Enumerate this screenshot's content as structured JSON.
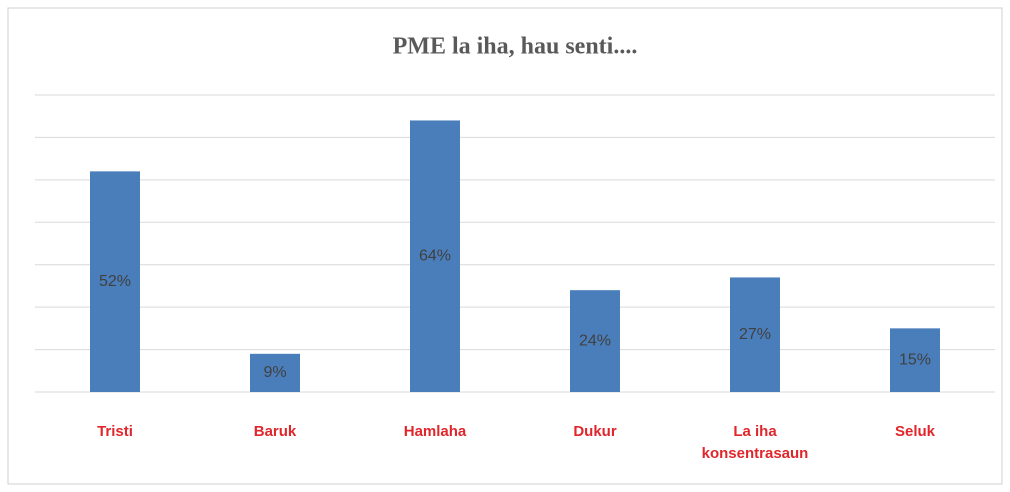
{
  "chart_data": {
    "type": "bar",
    "title": "PME la iha, hau senti....",
    "categories": [
      "Tristi",
      "Baruk",
      "Hamlaha",
      "Dukur",
      "La iha konsentrasaun",
      "Seluk"
    ],
    "values": [
      52,
      9,
      64,
      24,
      27,
      15
    ],
    "value_labels": [
      "52%",
      "9%",
      "64%",
      "24%",
      "27%",
      "15%"
    ],
    "color": "#4a7ebb",
    "category_color": "#e0262b",
    "ylim": [
      0,
      70
    ],
    "yticks": [
      0,
      10,
      20,
      30,
      40,
      50,
      60,
      70
    ],
    "grid": true
  }
}
